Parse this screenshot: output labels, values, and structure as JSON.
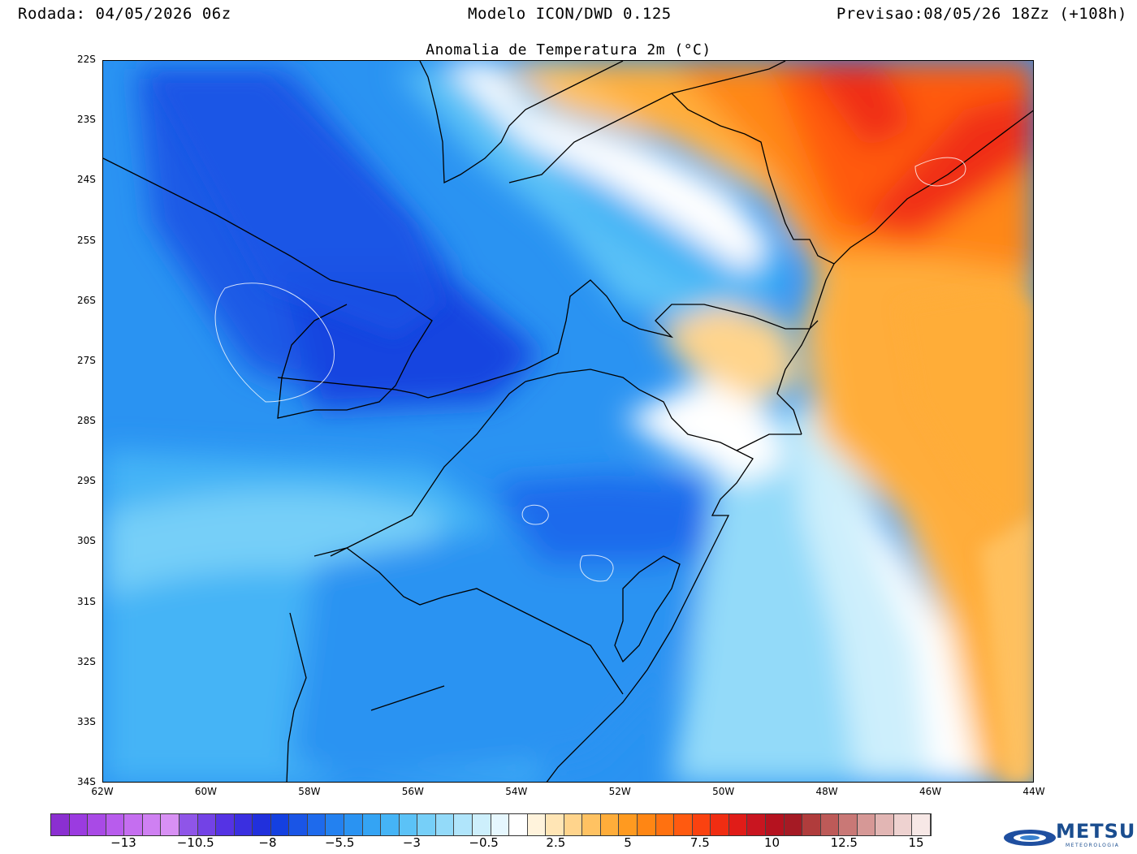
{
  "header": {
    "run": "Rodada: 04/05/2026 06z",
    "model": "Modelo ICON/DWD 0.125",
    "forecast": "Previsao:08/05/26 18Zz (+108h)"
  },
  "title": "Anomalia de Temperatura 2m (°C)",
  "lat_ticks": [
    "22S",
    "23S",
    "24S",
    "25S",
    "26S",
    "27S",
    "28S",
    "29S",
    "30S",
    "31S",
    "32S",
    "33S",
    "34S"
  ],
  "lon_ticks": [
    "62W",
    "60W",
    "58W",
    "56W",
    "54W",
    "52W",
    "50W",
    "48W",
    "46W",
    "44W"
  ],
  "colorbar": {
    "labels": [
      "−13",
      "−10.5",
      "−8",
      "−5.5",
      "−3",
      "−0.5",
      "2.5",
      "5",
      "7.5",
      "10",
      "12.5",
      "15"
    ],
    "colors": [
      "#8b2fd1",
      "#9b3be0",
      "#a94ae6",
      "#b85ced",
      "#c56ef0",
      "#cf80f2",
      "#d890f4",
      "#8f55e8",
      "#7342e6",
      "#5533e4",
      "#3a2fe0",
      "#2130dc",
      "#1440e0",
      "#1a55e6",
      "#1e6aec",
      "#2381f0",
      "#2a93f2",
      "#34a4f4",
      "#45b4f6",
      "#5bc2f7",
      "#76cff8",
      "#93daf9",
      "#b0e5fb",
      "#cdeffc",
      "#e6f7fe",
      "#ffffff",
      "#fff3dc",
      "#ffe5b5",
      "#ffd48c",
      "#ffc262",
      "#ffad3a",
      "#ff9a20",
      "#ff8614",
      "#ff7110",
      "#ff5a10",
      "#fa4210",
      "#f02d12",
      "#e01c18",
      "#c91520",
      "#b5121f",
      "#a51a24",
      "#b03c3c",
      "#bd5a58",
      "#c97876",
      "#d69896",
      "#e2b6b4",
      "#eed2d0",
      "#f7e8e6"
    ],
    "value_range": [
      -15,
      16
    ]
  },
  "logo": {
    "text": "METSUL",
    "subtext": "METEOROLOGIA"
  },
  "map_extent": {
    "lon_min": -62,
    "lon_max": -44,
    "lat_min": -34,
    "lat_max": -22
  },
  "anomaly_regions": [
    {
      "level": -6.5,
      "color": "#1f70ea"
    },
    {
      "level": -7.5,
      "color": "#1a5ae6"
    },
    {
      "level": -4.5,
      "color": "#2a93f2"
    },
    {
      "level": -3.5,
      "color": "#45b4f6"
    },
    {
      "level": -2.0,
      "color": "#93daf9"
    },
    {
      "level": -1.0,
      "color": "#cdeffc"
    },
    {
      "level": 0.0,
      "color": "#ffffff"
    },
    {
      "level": 3.0,
      "color": "#ffc262"
    },
    {
      "level": 4.0,
      "color": "#ffad3a"
    },
    {
      "level": 6.0,
      "color": "#ff8614"
    },
    {
      "level": 9.0,
      "color": "#f02d12"
    }
  ]
}
